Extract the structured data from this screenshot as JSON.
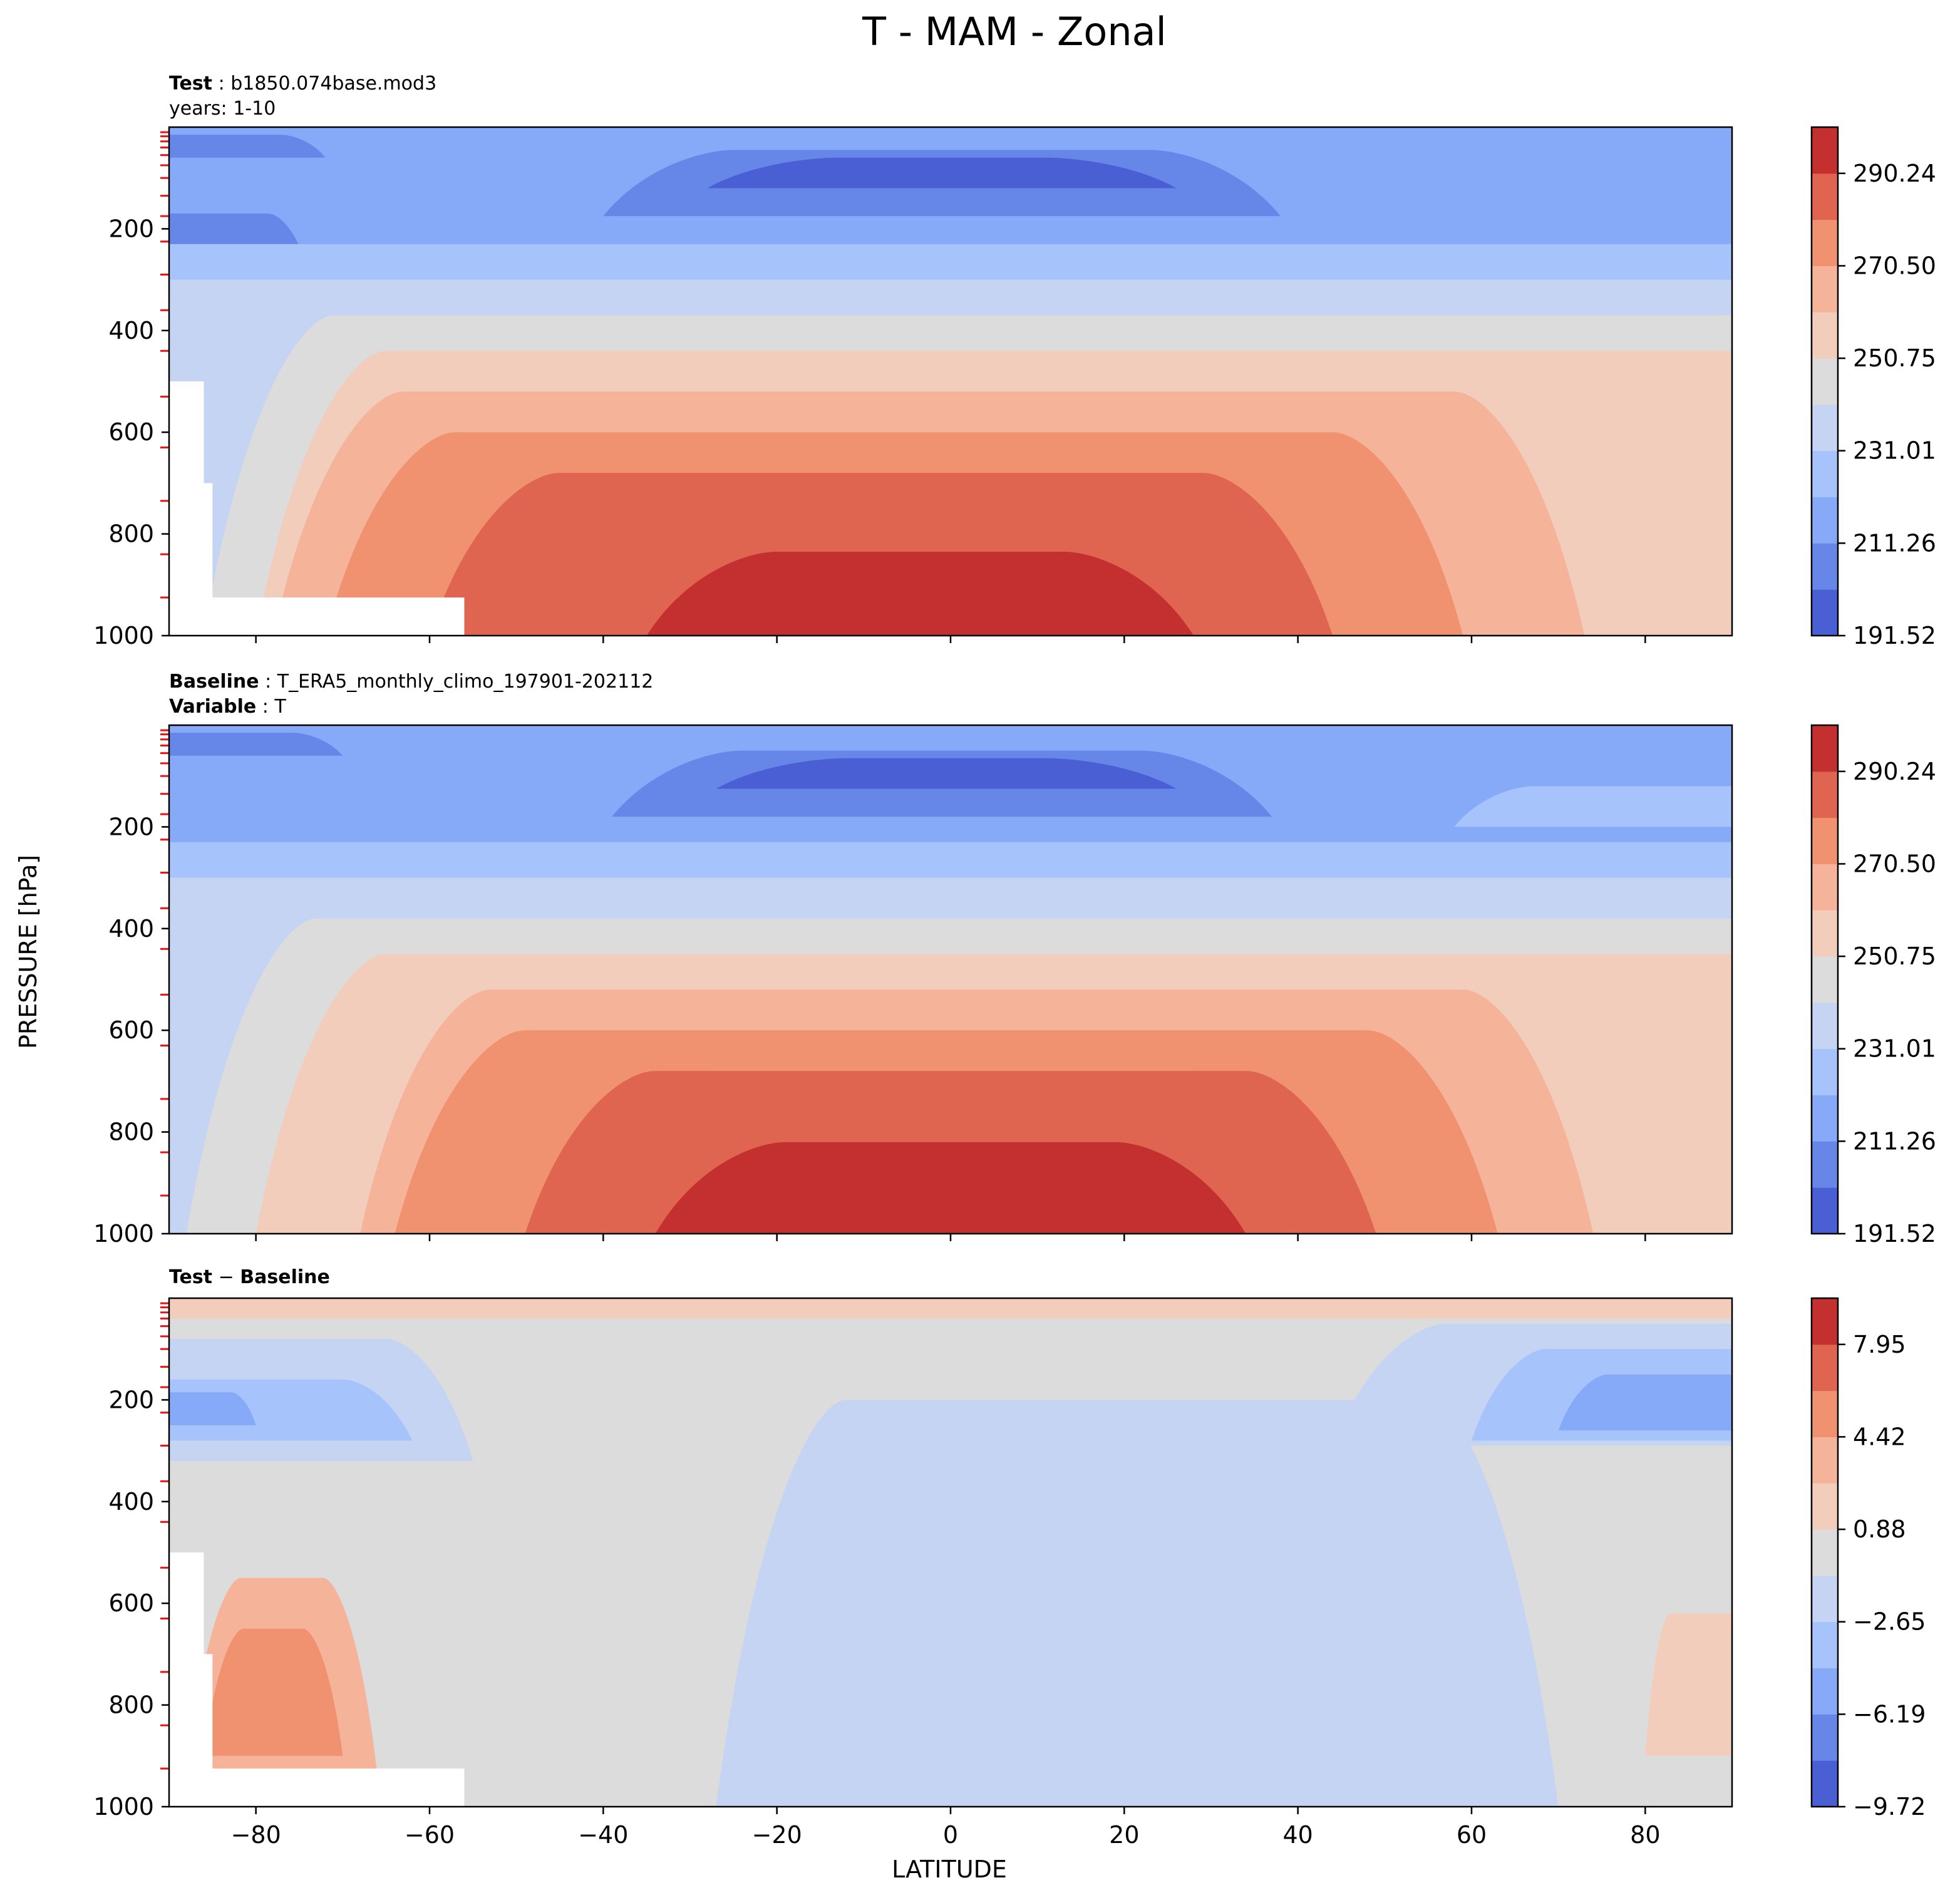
{
  "figure": {
    "title": "T - MAM - Zonal",
    "ylabel": "PRESSURE [hPa]",
    "xlabel": "LATITUDE"
  },
  "chart_data": [
    {
      "type": "heatmap",
      "panel": "test",
      "header": {
        "key": "Test",
        "sep": " : ",
        "value": "b1850.074base.mod3",
        "line2": "years: 1-10"
      },
      "xlim": [
        -90,
        90
      ],
      "ylim": [
        1000,
        0
      ],
      "y_reversed": true,
      "y_ticks": [
        200,
        400,
        600,
        800,
        1000
      ],
      "x_ticks": [
        -80,
        -60,
        -40,
        -20,
        0,
        20,
        40,
        60,
        80
      ],
      "x_tick_labels_shown": false,
      "colorbar": {
        "levels": [
          191.52,
          201.39,
          211.26,
          221.14,
          231.01,
          240.88,
          250.75,
          260.62,
          270.5,
          280.37,
          290.24,
          300.11
        ],
        "tick_labels": [
          "191.52",
          "211.26",
          "231.01",
          "250.75",
          "270.50",
          "290.24"
        ],
        "colors": [
          "#4a5fd4",
          "#6787e8",
          "#86a9f8",
          "#a6c3fc",
          "#c4d4f2",
          "#dcdcdc",
          "#f2cdbc",
          "#f5b49a",
          "#f0916f",
          "#df6551",
          "#c42f2f"
        ]
      },
      "contour_bands": [
        {
          "level_index": 2,
          "pressure_top_hPa": 0,
          "pressure_bottom_hPa": 1000,
          "lat_range": [
            -90,
            90
          ]
        },
        {
          "level_index": 1,
          "pressure_top_hPa": 45,
          "pressure_bottom_hPa": 175,
          "lat_range": [
            -40,
            38
          ]
        },
        {
          "level_index": 0,
          "pressure_top_hPa": 60,
          "pressure_bottom_hPa": 120,
          "lat_range": [
            -28,
            26
          ]
        },
        {
          "level_index": 1,
          "pressure_top_hPa": 15,
          "pressure_bottom_hPa": 60,
          "lat_range": [
            -90,
            -72
          ]
        },
        {
          "level_index": 1,
          "pressure_top_hPa": 170,
          "pressure_bottom_hPa": 280,
          "lat_range": [
            -90,
            -74
          ]
        },
        {
          "level_index": 3,
          "pressure_top_hPa": 230,
          "pressure_bottom_hPa": 1000,
          "lat_range": [
            -90,
            90
          ]
        },
        {
          "level_index": 4,
          "pressure_top_hPa": 300,
          "pressure_bottom_hPa": 1000,
          "lat_range": [
            -90,
            90
          ]
        },
        {
          "level_index": 5,
          "pressure_top_hPa": 370,
          "pressure_bottom_hPa": 1000,
          "lat_range": [
            -86,
            90
          ]
        },
        {
          "level_index": 6,
          "pressure_top_hPa": 440,
          "pressure_bottom_hPa": 1000,
          "lat_range": [
            -80,
            90
          ]
        },
        {
          "level_index": 7,
          "pressure_top_hPa": 520,
          "pressure_bottom_hPa": 1000,
          "lat_range": [
            -78,
            73
          ]
        },
        {
          "level_index": 8,
          "pressure_top_hPa": 600,
          "pressure_bottom_hPa": 1000,
          "lat_range": [
            -72,
            59
          ]
        },
        {
          "level_index": 9,
          "pressure_top_hPa": 680,
          "pressure_bottom_hPa": 1000,
          "lat_range": [
            -60,
            44
          ]
        },
        {
          "level_index": 10,
          "pressure_top_hPa": 835,
          "pressure_bottom_hPa": 1000,
          "lat_range": [
            -35,
            28
          ]
        }
      ],
      "masked_regions": [
        {
          "lat_range": [
            -90,
            -86
          ],
          "pressure_range": [
            500,
            1000
          ]
        },
        {
          "lat_range": [
            -90,
            -85
          ],
          "pressure_range": [
            700,
            1000
          ]
        },
        {
          "lat_range": [
            -90,
            -56
          ],
          "pressure_range": [
            925,
            1000
          ]
        }
      ]
    },
    {
      "type": "heatmap",
      "panel": "baseline",
      "header": {
        "key": "Baseline",
        "sep": " : ",
        "value": "T_ERA5_monthly_climo_197901-202112",
        "key2": "Variable",
        "sep2": " : ",
        "value2": "T"
      },
      "xlim": [
        -90,
        90
      ],
      "ylim": [
        1000,
        0
      ],
      "y_reversed": true,
      "y_ticks": [
        200,
        400,
        600,
        800,
        1000
      ],
      "x_ticks": [
        -80,
        -60,
        -40,
        -20,
        0,
        20,
        40,
        60,
        80
      ],
      "x_tick_labels_shown": false,
      "colorbar": {
        "levels": [
          191.52,
          201.39,
          211.26,
          221.14,
          231.01,
          240.88,
          250.75,
          260.62,
          270.5,
          280.37,
          290.24,
          300.11
        ],
        "tick_labels": [
          "191.52",
          "211.26",
          "231.01",
          "250.75",
          "270.50",
          "290.24"
        ],
        "colors": [
          "#4a5fd4",
          "#6787e8",
          "#86a9f8",
          "#a6c3fc",
          "#c4d4f2",
          "#dcdcdc",
          "#f2cdbc",
          "#f5b49a",
          "#f0916f",
          "#df6551",
          "#c42f2f"
        ]
      },
      "contour_bands": [
        {
          "level_index": 2,
          "pressure_top_hPa": 0,
          "pressure_bottom_hPa": 1000,
          "lat_range": [
            -90,
            90
          ]
        },
        {
          "level_index": 1,
          "pressure_top_hPa": 50,
          "pressure_bottom_hPa": 180,
          "lat_range": [
            -39,
            37
          ]
        },
        {
          "level_index": 0,
          "pressure_top_hPa": 65,
          "pressure_bottom_hPa": 125,
          "lat_range": [
            -27,
            26
          ]
        },
        {
          "level_index": 1,
          "pressure_top_hPa": 15,
          "pressure_bottom_hPa": 60,
          "lat_range": [
            -90,
            -70
          ]
        },
        {
          "level_index": 3,
          "pressure_top_hPa": 120,
          "pressure_bottom_hPa": 200,
          "lat_range": [
            58,
            90
          ]
        },
        {
          "level_index": 3,
          "pressure_top_hPa": 230,
          "pressure_bottom_hPa": 1000,
          "lat_range": [
            -90,
            90
          ]
        },
        {
          "level_index": 4,
          "pressure_top_hPa": 300,
          "pressure_bottom_hPa": 1000,
          "lat_range": [
            -90,
            90
          ]
        },
        {
          "level_index": 5,
          "pressure_top_hPa": 380,
          "pressure_bottom_hPa": 1000,
          "lat_range": [
            -88,
            90
          ]
        },
        {
          "level_index": 6,
          "pressure_top_hPa": 450,
          "pressure_bottom_hPa": 1000,
          "lat_range": [
            -80,
            90
          ]
        },
        {
          "level_index": 7,
          "pressure_top_hPa": 520,
          "pressure_bottom_hPa": 1000,
          "lat_range": [
            -68,
            74
          ]
        },
        {
          "level_index": 8,
          "pressure_top_hPa": 600,
          "pressure_bottom_hPa": 1000,
          "lat_range": [
            -64,
            63
          ]
        },
        {
          "level_index": 9,
          "pressure_top_hPa": 680,
          "pressure_bottom_hPa": 1000,
          "lat_range": [
            -49,
            49
          ]
        },
        {
          "level_index": 10,
          "pressure_top_hPa": 820,
          "pressure_bottom_hPa": 1000,
          "lat_range": [
            -34,
            34
          ]
        }
      ],
      "masked_regions": []
    },
    {
      "type": "heatmap",
      "panel": "difference",
      "header": {
        "key": "Test",
        "sep": " − ",
        "value": "Baseline"
      },
      "xlim": [
        -90,
        90
      ],
      "ylim": [
        1000,
        0
      ],
      "y_reversed": true,
      "y_ticks": [
        200,
        400,
        600,
        800,
        1000
      ],
      "x_ticks": [
        -80,
        -60,
        -40,
        -20,
        0,
        20,
        40,
        60,
        80
      ],
      "x_tick_labels": [
        "−80",
        "−60",
        "−40",
        "−20",
        "0",
        "20",
        "40",
        "60",
        "80"
      ],
      "x_tick_labels_shown": true,
      "colorbar": {
        "levels": [
          -9.72,
          -7.95,
          -6.19,
          -4.42,
          -2.65,
          -0.88,
          0.88,
          2.65,
          4.42,
          6.19,
          7.95,
          9.72
        ],
        "tick_labels": [
          "−9.72",
          "−6.19",
          "−2.65",
          "0.88",
          "4.42",
          "7.95"
        ],
        "colors": [
          "#4a5fd4",
          "#6787e8",
          "#86a9f8",
          "#a6c3fc",
          "#c4d4f2",
          "#dcdcdc",
          "#f2cdbc",
          "#f5b49a",
          "#f0916f",
          "#df6551",
          "#c42f2f"
        ]
      },
      "contour_bands": [
        {
          "level_index": 5,
          "pressure_top_hPa": 0,
          "pressure_bottom_hPa": 1000,
          "lat_range": [
            -90,
            90
          ]
        },
        {
          "level_index": 6,
          "pressure_top_hPa": 0,
          "pressure_bottom_hPa": 40,
          "lat_range": [
            -90,
            90
          ]
        },
        {
          "level_index": 4,
          "pressure_top_hPa": 80,
          "pressure_bottom_hPa": 320,
          "lat_range": [
            -90,
            -55
          ]
        },
        {
          "level_index": 3,
          "pressure_top_hPa": 160,
          "pressure_bottom_hPa": 280,
          "lat_range": [
            -90,
            -62
          ]
        },
        {
          "level_index": 2,
          "pressure_top_hPa": 185,
          "pressure_bottom_hPa": 250,
          "lat_range": [
            -90,
            -80
          ]
        },
        {
          "level_index": 4,
          "pressure_top_hPa": 200,
          "pressure_bottom_hPa": 1000,
          "lat_range": [
            -27,
            70
          ]
        },
        {
          "level_index": 4,
          "pressure_top_hPa": 50,
          "pressure_bottom_hPa": 290,
          "lat_range": [
            44,
            90
          ]
        },
        {
          "level_index": 3,
          "pressure_top_hPa": 100,
          "pressure_bottom_hPa": 280,
          "lat_range": [
            60,
            90
          ]
        },
        {
          "level_index": 2,
          "pressure_top_hPa": 150,
          "pressure_bottom_hPa": 260,
          "lat_range": [
            70,
            90
          ]
        },
        {
          "level_index": 7,
          "pressure_top_hPa": 550,
          "pressure_bottom_hPa": 940,
          "lat_range": [
            -88,
            -66
          ]
        },
        {
          "level_index": 8,
          "pressure_top_hPa": 650,
          "pressure_bottom_hPa": 900,
          "lat_range": [
            -86,
            -70
          ]
        },
        {
          "level_index": 6,
          "pressure_top_hPa": 620,
          "pressure_bottom_hPa": 900,
          "lat_range": [
            80,
            90
          ]
        }
      ],
      "masked_regions": [
        {
          "lat_range": [
            -90,
            -86
          ],
          "pressure_range": [
            500,
            1000
          ]
        },
        {
          "lat_range": [
            -90,
            -85
          ],
          "pressure_range": [
            700,
            1000
          ]
        },
        {
          "lat_range": [
            -90,
            -56
          ],
          "pressure_range": [
            925,
            1000
          ]
        }
      ]
    }
  ]
}
